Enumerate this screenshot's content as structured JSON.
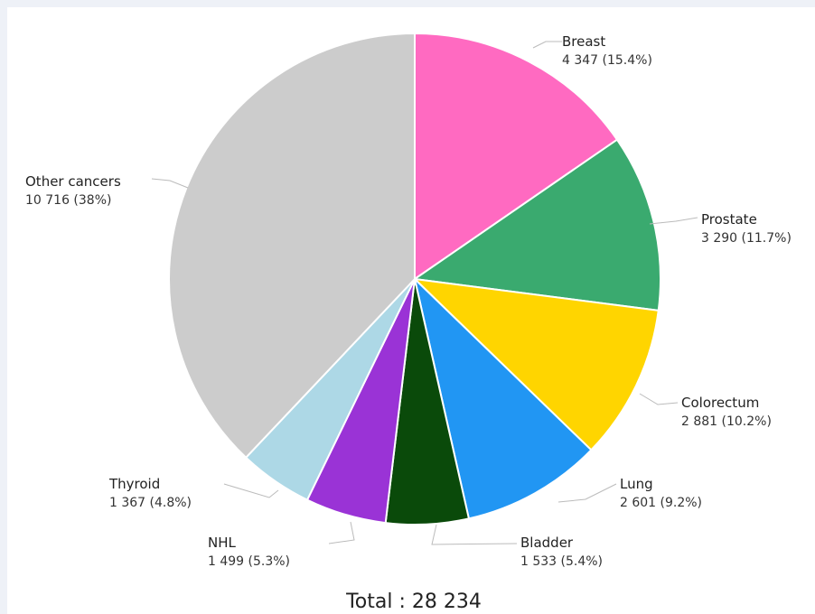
{
  "chart_data": {
    "type": "pie",
    "title": "",
    "total_label": "Total : 28 234",
    "slices": [
      {
        "label": "Breast",
        "value": 4347,
        "value_text": "4 347 (15.4%)",
        "color": "#ff6ac1"
      },
      {
        "label": "Prostate",
        "value": 3290,
        "value_text": "3 290 (11.7%)",
        "color": "#3aaa6f"
      },
      {
        "label": "Colorectum",
        "value": 2881,
        "value_text": "2 881 (10.2%)",
        "color": "#ffd500"
      },
      {
        "label": "Lung",
        "value": 2601,
        "value_text": "2 601 (9.2%)",
        "color": "#2196f3"
      },
      {
        "label": "Bladder",
        "value": 1533,
        "value_text": "1 533 (5.4%)",
        "color": "#0a4a0a"
      },
      {
        "label": "NHL",
        "value": 1499,
        "value_text": "1 499 (5.3%)",
        "color": "#9a33d6"
      },
      {
        "label": "Thyroid",
        "value": 1367,
        "value_text": "1 367 (4.8%)",
        "color": "#add8e6"
      },
      {
        "label": "Other cancers",
        "value": 10716,
        "value_text": "10 716 (38%)",
        "color": "#cccccc"
      }
    ]
  }
}
